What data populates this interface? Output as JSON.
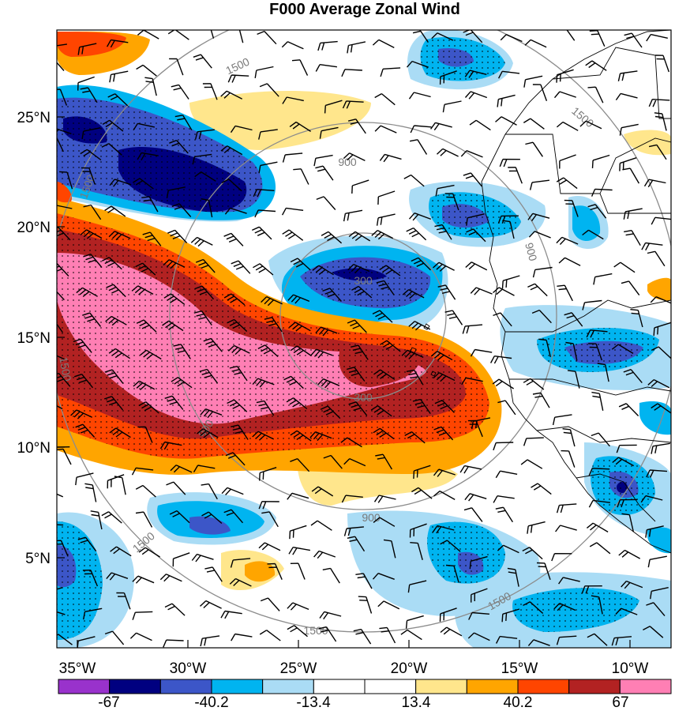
{
  "title": "F000 Average Zonal Wind",
  "chart_data": {
    "type": "heatmap",
    "title": "F000 Average Zonal Wind",
    "x_ticks": [
      "35°W",
      "30°W",
      "25°W",
      "20°W",
      "15°W",
      "10°W"
    ],
    "y_ticks": [
      "25°N",
      "20°N",
      "15°N",
      "10°N",
      "5°N"
    ],
    "colorbar": {
      "colors": [
        "#9932cc",
        "#000080",
        "#3c56c8",
        "#00b4f0",
        "#aadcf5",
        "#ffffff",
        "#ffffff",
        "#ffe68c",
        "#ffa500",
        "#ff4500",
        "#b22222",
        "#ff7fb4"
      ],
      "labels": [
        "-67",
        "-40.2",
        "-13.4",
        "13.4",
        "40.2",
        "67"
      ]
    },
    "range_rings": {
      "labels": [
        "300",
        "300",
        "900",
        "900",
        "900",
        "900",
        "1500",
        "1500",
        "1500",
        "1500",
        "1500",
        "1500",
        "1500"
      ]
    },
    "overlays": [
      "wind barbs",
      "stippling",
      "coastlines",
      "political borders"
    ]
  }
}
